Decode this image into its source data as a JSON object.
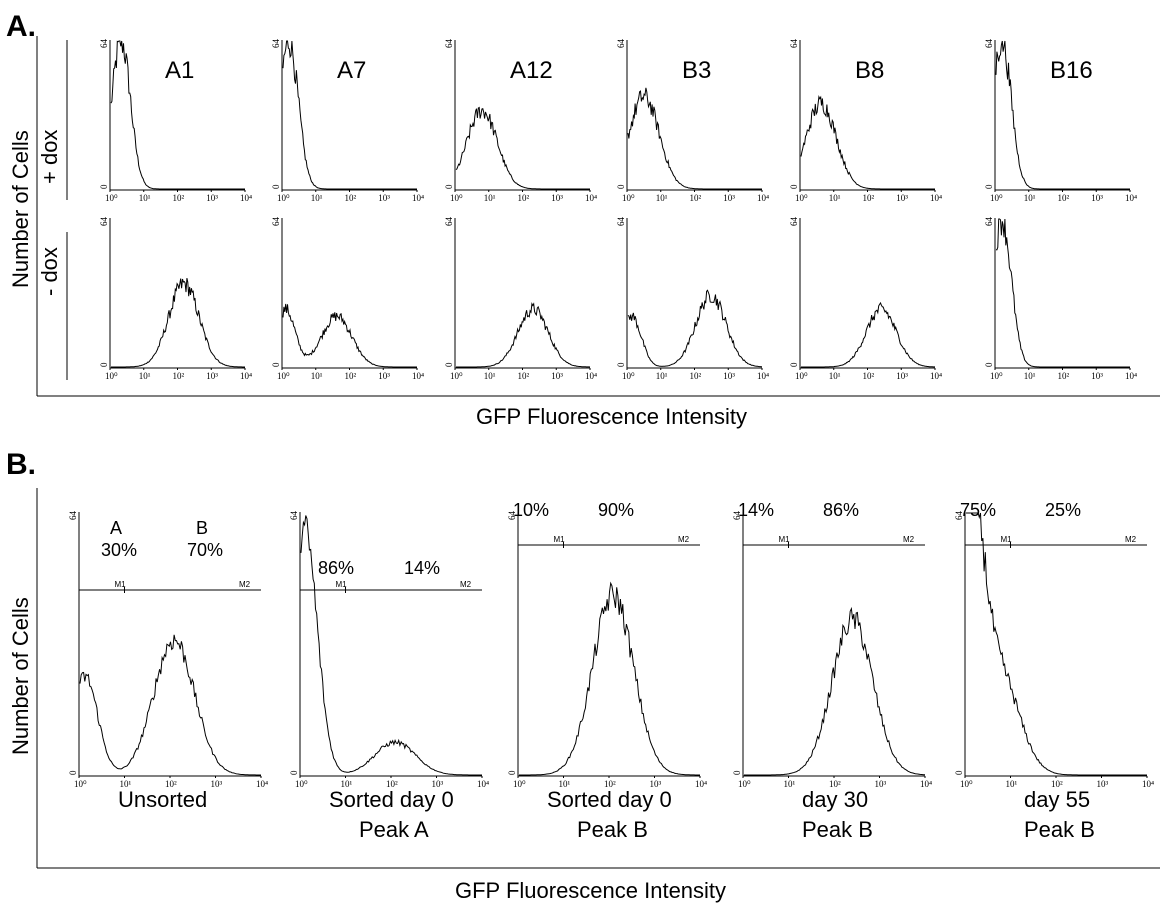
{
  "panel_a": {
    "label": "A.",
    "y_axis_label": "Number of Cells",
    "x_axis_label": "GFP Fluorescence Intensity",
    "row_labels": [
      "+ dox",
      "- dox"
    ]
  },
  "panel_b": {
    "label": "B.",
    "y_axis_label": "Number of Cells",
    "x_axis_label": "GFP Fluorescence Intensity"
  },
  "axis_ticks": {
    "y_max": "64",
    "y_min": "0",
    "x": [
      "10⁰",
      "10¹",
      "10²",
      "10³",
      "10⁴"
    ]
  },
  "chart_data": [
    {
      "type": "area",
      "panel": "A",
      "x_scale": "log",
      "xlim": [
        1,
        10000
      ],
      "ylim": [
        0,
        64
      ],
      "rows": [
        "+ dox",
        "- dox"
      ],
      "clones": [
        {
          "name": "A1",
          "plus_dox": {
            "peaks": [
              {
                "x": 2,
                "count": 64
              }
            ]
          },
          "minus_dox": {
            "peaks": [
              {
                "x": 150,
                "count": 36
              }
            ]
          }
        },
        {
          "name": "A7",
          "plus_dox": {
            "peaks": [
              {
                "x": 1.5,
                "count": 64
              }
            ]
          },
          "minus_dox": {
            "peaks": [
              {
                "x": 1.2,
                "count": 25
              },
              {
                "x": 40,
                "count": 22
              }
            ]
          }
        },
        {
          "name": "A12",
          "plus_dox": {
            "peaks": [
              {
                "x": 6,
                "count": 34
              }
            ]
          },
          "minus_dox": {
            "peaks": [
              {
                "x": 200,
                "count": 25
              }
            ]
          }
        },
        {
          "name": "B3",
          "plus_dox": {
            "peaks": [
              {
                "x": 3,
                "count": 40
              }
            ]
          },
          "minus_dox": {
            "peaks": [
              {
                "x": 1.3,
                "count": 22
              },
              {
                "x": 300,
                "count": 31
              }
            ]
          }
        },
        {
          "name": "B8",
          "plus_dox": {
            "peaks": [
              {
                "x": 4,
                "count": 37
              }
            ]
          },
          "minus_dox": {
            "peaks": [
              {
                "x": 250,
                "count": 25
              }
            ]
          }
        },
        {
          "name": "B16",
          "plus_dox": {
            "peaks": [
              {
                "x": 1.5,
                "count": 64
              }
            ]
          },
          "minus_dox": {
            "peaks": [
              {
                "x": 1.5,
                "count": 64
              }
            ]
          }
        }
      ]
    },
    {
      "type": "area",
      "panel": "B",
      "x_scale": "log",
      "xlim": [
        1,
        10000
      ],
      "ylim": [
        0,
        64
      ],
      "gate_labels": [
        "M1",
        "M2"
      ],
      "histograms": [
        {
          "caption": [
            "Unsorted"
          ],
          "peak_labels": [
            "A",
            "B"
          ],
          "percents": [
            "30%",
            "70%"
          ],
          "peaks": [
            {
              "x": 1.3,
              "count": 24
            },
            {
              "x": 120,
              "count": 33
            }
          ]
        },
        {
          "caption": [
            "Sorted day 0",
            "Peak A"
          ],
          "peak_labels": [],
          "percents": [
            "86%",
            "14%"
          ],
          "peaks": [
            {
              "x": 1.2,
              "count": 60
            },
            {
              "x": 120,
              "count": 8
            }
          ]
        },
        {
          "caption": [
            "Sorted day 0",
            "Peak B"
          ],
          "peak_labels": [],
          "percents": [
            "10%",
            "90%"
          ],
          "peaks": [
            {
              "x": 120,
              "count": 44
            }
          ]
        },
        {
          "caption": [
            "day 30",
            "Peak B"
          ],
          "peak_labels": [],
          "percents": [
            "14%",
            "86%"
          ],
          "peaks": [
            {
              "x": 250,
              "count": 38
            }
          ]
        },
        {
          "caption": [
            "day 55",
            "Peak B"
          ],
          "peak_labels": [],
          "percents": [
            "75%",
            "25%"
          ],
          "peaks": [
            {
              "x": 1.2,
              "count": 64
            },
            {
              "x": 5,
              "count": 26
            }
          ]
        }
      ]
    }
  ]
}
